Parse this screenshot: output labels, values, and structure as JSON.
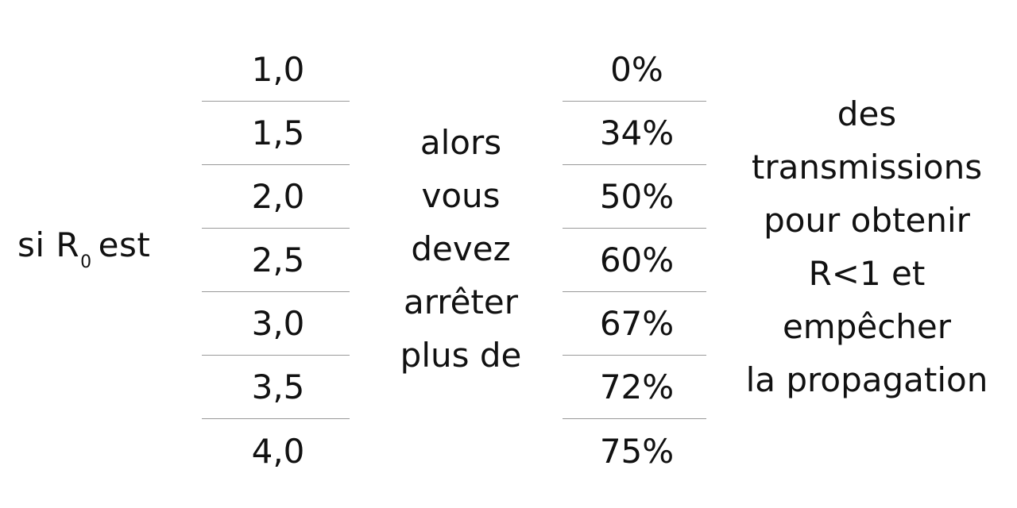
{
  "prefix": {
    "si": "si",
    "r": "R",
    "subscript": "0",
    "est": "est"
  },
  "r0_values": [
    "1,0",
    "1,5",
    "2,0",
    "2,5",
    "3,0",
    "3,5",
    "4,0"
  ],
  "middle_text": [
    "alors",
    "vous",
    "devez",
    "arrêter",
    "plus de"
  ],
  "percentages": [
    "0%",
    "34%",
    "50%",
    "60%",
    "67%",
    "72%",
    "75%"
  ],
  "right_text": [
    "des",
    "transmissions",
    "pour obtenir",
    "R<1 et",
    "empêcher",
    "la propagation"
  ]
}
